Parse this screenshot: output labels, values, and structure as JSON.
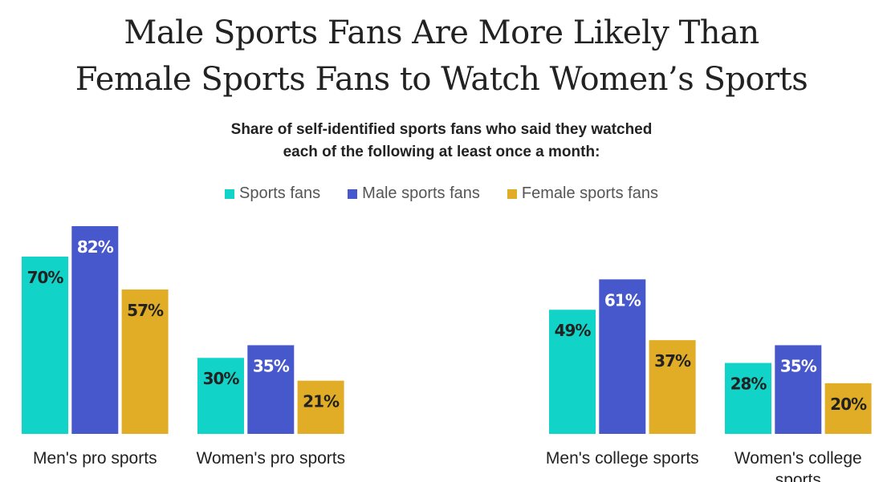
{
  "chart_data": {
    "type": "bar",
    "title": "Male Sports Fans Are More Likely Than Female Sports Fans to Watch Women’s Sports",
    "title_lines": [
      "Male Sports Fans Are More Likely Than",
      "Female Sports Fans to Watch Women’s Sports"
    ],
    "subtitle_lines": [
      "Share of self-identified sports fans who said they watched",
      "each of the following at least once a month:"
    ],
    "categories": [
      "Men's pro sports",
      "Women's pro sports",
      "Men's college sports",
      "Women's college sports"
    ],
    "series": [
      {
        "name": "Sports fans",
        "color": "#12d3c8",
        "label_color": "#222222",
        "values": [
          70,
          30,
          49,
          28
        ]
      },
      {
        "name": "Male sports fans",
        "color": "#4757cc",
        "label_color": "#ffffff",
        "values": [
          82,
          35,
          61,
          35
        ]
      },
      {
        "name": "Female sports fans",
        "color": "#e2ad26",
        "label_color": "#222222",
        "values": [
          57,
          21,
          37,
          20
        ]
      }
    ],
    "value_format": "{v}%",
    "ylim": [
      0,
      82
    ],
    "grid": false,
    "legend_position": "top-center",
    "xlabel": "",
    "ylabel": ""
  }
}
